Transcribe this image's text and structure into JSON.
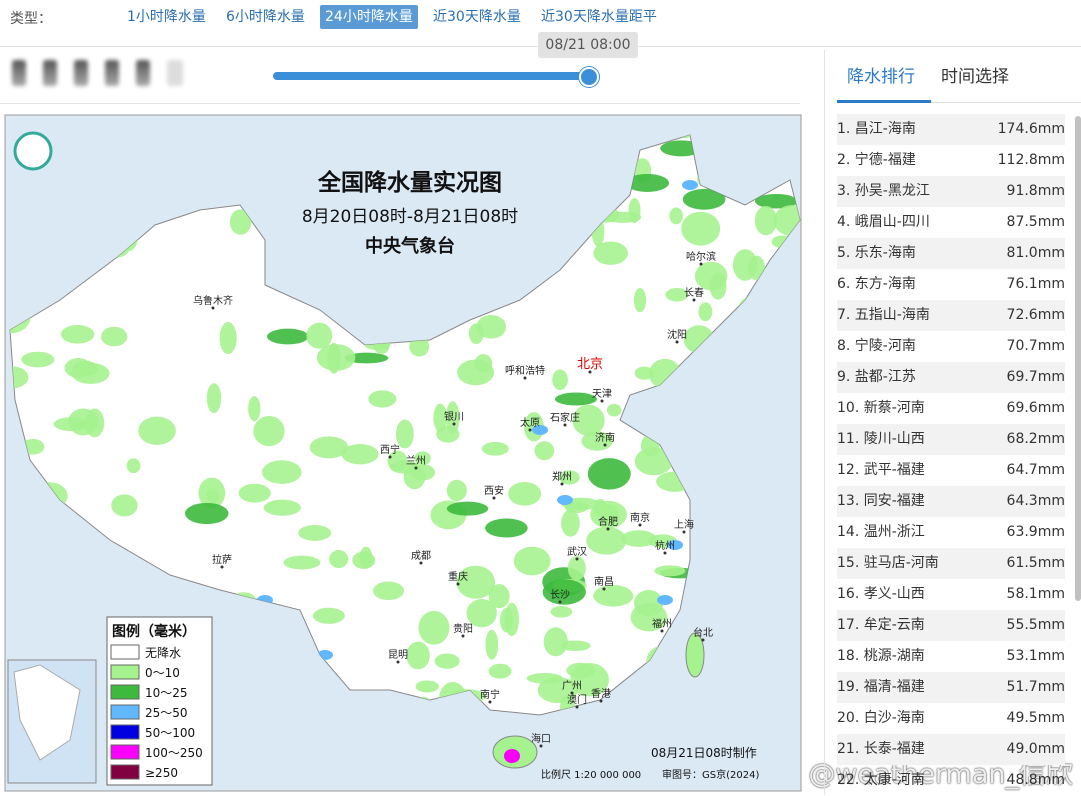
{
  "filter": {
    "label": "类型：",
    "tabs": [
      "1小时降水量",
      "6小时降水量",
      "24小时降水量",
      "近30天降水量",
      "近30天降水量距平"
    ],
    "active": 2
  },
  "slider": {
    "time": "08/21 08:00"
  },
  "map": {
    "title": "全国降水量实况图",
    "subtitle": "8月20日08时-8月21日08时",
    "org": "中央气象台",
    "cities": [
      "乌鲁木齐",
      "哈尔滨",
      "长春",
      "沈阳",
      "呼和浩特",
      "北京",
      "天津",
      "银川",
      "石家庄",
      "太原",
      "济南",
      "西宁",
      "兰州",
      "郑州",
      "西安",
      "合肥",
      "南京",
      "上海",
      "成都",
      "武汉",
      "杭州",
      "重庆",
      "拉萨",
      "长沙",
      "南昌",
      "贵阳",
      "福州",
      "台北",
      "昆明",
      "南宁",
      "广州",
      "香港",
      "澳门",
      "海口"
    ],
    "legend": {
      "title": "图例（毫米）",
      "items": [
        {
          "label": "无降水",
          "color": "#ffffff"
        },
        {
          "label": "0～10",
          "color": "#a6f28f"
        },
        {
          "label": "10～25",
          "color": "#3dba3d"
        },
        {
          "label": "25～50",
          "color": "#61b8ff"
        },
        {
          "label": "50～100",
          "color": "#0000e1"
        },
        {
          "label": "100～250",
          "color": "#fa00fa"
        },
        {
          "label": "≥250",
          "color": "#800040"
        }
      ]
    },
    "made": "08月21日08时制作",
    "scale": "比例尺 1:20 000 000",
    "review": "审图号：GS京(2024)"
  },
  "watermark": "@weatherman_信欣",
  "side": {
    "tabs": [
      "降水排行",
      "时间选择"
    ],
    "active": 0,
    "items": [
      {
        "name": "1. 昌江-海南",
        "value": "174.6mm"
      },
      {
        "name": "2. 宁德-福建",
        "value": "112.8mm"
      },
      {
        "name": "3. 孙吴-黑龙江",
        "value": "91.8mm"
      },
      {
        "name": "4. 峨眉山-四川",
        "value": "87.5mm"
      },
      {
        "name": "5. 乐东-海南",
        "value": "81.0mm"
      },
      {
        "name": "6. 东方-海南",
        "value": "76.1mm"
      },
      {
        "name": "7. 五指山-海南",
        "value": "72.6mm"
      },
      {
        "name": "8. 宁陵-河南",
        "value": "70.7mm"
      },
      {
        "name": "9. 盐都-江苏",
        "value": "69.7mm"
      },
      {
        "name": "10. 新蔡-河南",
        "value": "69.6mm"
      },
      {
        "name": "11. 陵川-山西",
        "value": "68.2mm"
      },
      {
        "name": "12. 武平-福建",
        "value": "64.7mm"
      },
      {
        "name": "13. 同安-福建",
        "value": "64.3mm"
      },
      {
        "name": "14. 温州-浙江",
        "value": "63.9mm"
      },
      {
        "name": "15. 驻马店-河南",
        "value": "61.5mm"
      },
      {
        "name": "16. 孝义-山西",
        "value": "58.1mm"
      },
      {
        "name": "17. 牟定-云南",
        "value": "55.5mm"
      },
      {
        "name": "18. 桃源-湖南",
        "value": "53.1mm"
      },
      {
        "name": "19. 福清-福建",
        "value": "51.7mm"
      },
      {
        "name": "20. 白沙-海南",
        "value": "49.5mm"
      },
      {
        "name": "21. 长泰-福建",
        "value": "49.0mm"
      },
      {
        "name": "22. 太康-河南",
        "value": "48.8mm"
      }
    ]
  }
}
